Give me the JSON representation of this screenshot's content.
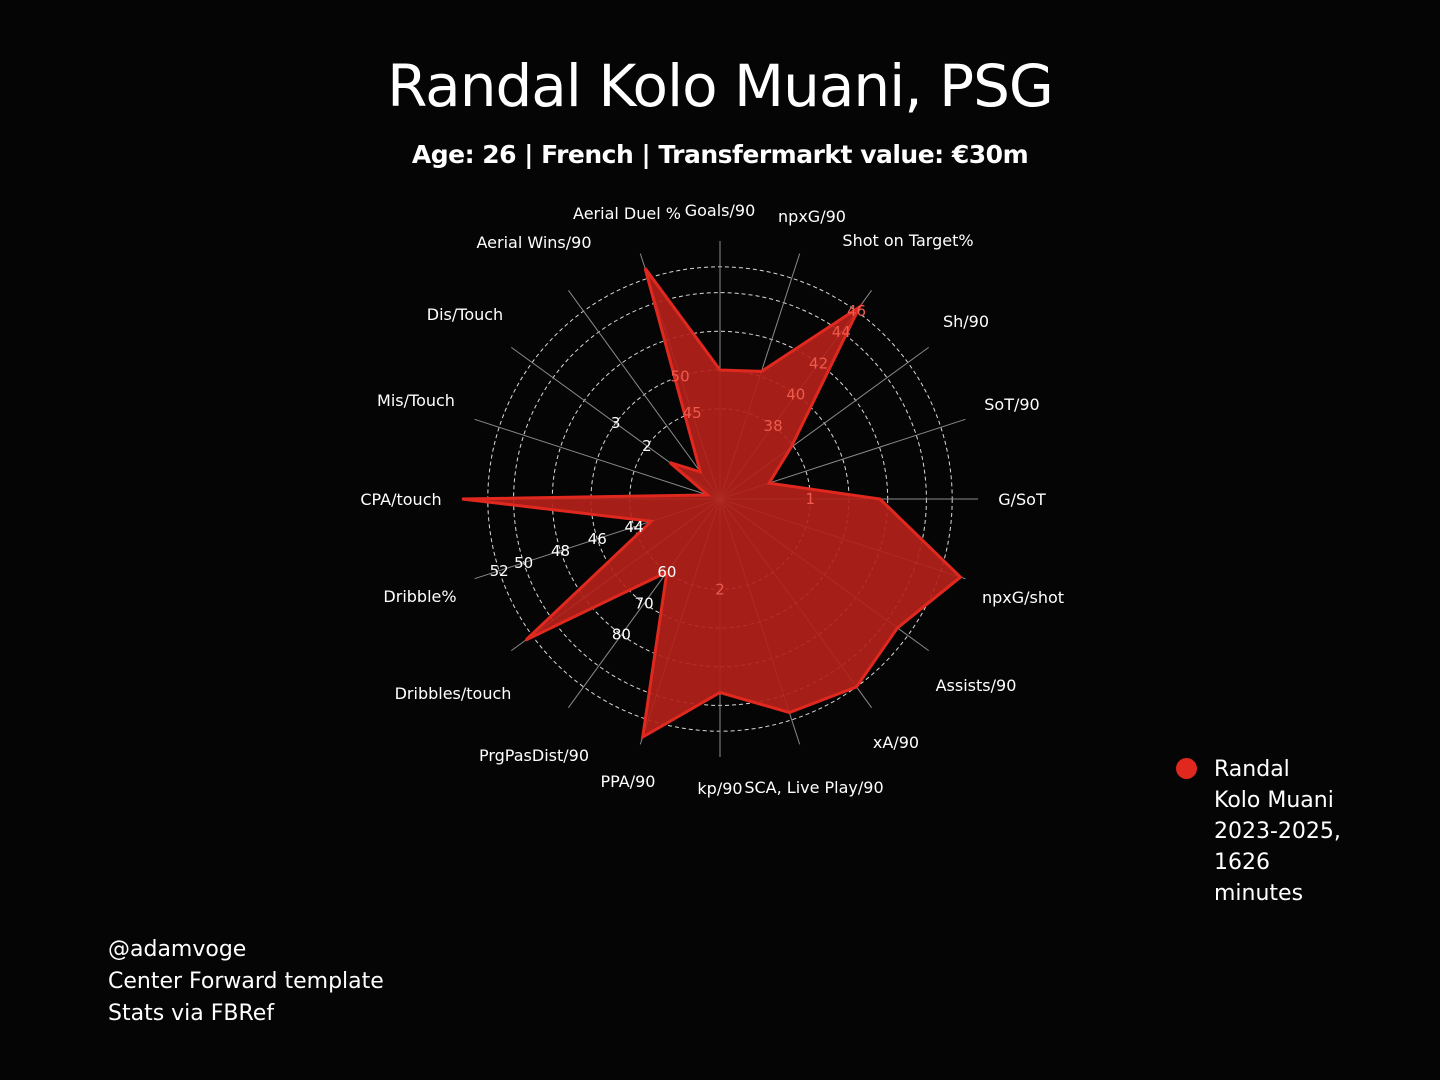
{
  "title": "Randal Kolo Muani, PSG",
  "subtitle": "Age: 26 | French | Transfermarkt value: €30m",
  "colors": {
    "background": "#050505",
    "player_fill": "#b3211a",
    "player_edge": "#e0281f",
    "grid": "#d9d9d9",
    "spoke": "#8a8a8a",
    "text": "#ffffff",
    "tick_label_on_fill": "#ef5b4d"
  },
  "legend": {
    "lines": [
      "Randal",
      "Kolo Muani",
      "2023-2025,",
      "1626",
      "minutes"
    ]
  },
  "footer": {
    "lines": [
      "@adamvoge",
      "Center Forward template",
      "Stats via FBRef"
    ]
  },
  "chart_data": {
    "type": "radar",
    "title": "Randal Kolo Muani, PSG",
    "subtitle": "Age: 26 | French | Transfermarkt value: €30m",
    "grid": true,
    "legend_position": "right",
    "axes": [
      {
        "label": "Goals/90"
      },
      {
        "label": "npxG/90"
      },
      {
        "label": "Shot on Target%",
        "ticks": [
          38,
          40,
          42,
          44,
          46
        ]
      },
      {
        "label": "Sh/90"
      },
      {
        "label": "SoT/90"
      },
      {
        "label": "G/SoT",
        "ticks": [
          1
        ]
      },
      {
        "label": "npxG/shot"
      },
      {
        "label": "Assists/90"
      },
      {
        "label": "xA/90"
      },
      {
        "label": "SCA, Live Play/90"
      },
      {
        "label": "kp/90",
        "ticks": [
          2
        ]
      },
      {
        "label": "PPA/90"
      },
      {
        "label": "PrgPasDist/90",
        "ticks": [
          60,
          70,
          80
        ]
      },
      {
        "label": "Dribbles/touch"
      },
      {
        "label": "Dribble%",
        "ticks": [
          44,
          46,
          48,
          50,
          52
        ]
      },
      {
        "label": "CPA/touch"
      },
      {
        "label": "Mis/Touch"
      },
      {
        "label": "Dis/Touch",
        "ticks": [
          2,
          3
        ]
      },
      {
        "label": "Aerial Wins/90"
      },
      {
        "label": "Aerial Duel %",
        "ticks": [
          45,
          50
        ]
      }
    ],
    "series": [
      {
        "name": "Randal Kolo Muani 2023-2025, 1626 minutes",
        "scaled_values": [
          0.5,
          0.52,
          0.92,
          0.34,
          0.2,
          0.62,
          0.98,
          0.85,
          0.9,
          0.87,
          0.75,
          0.97,
          0.35,
          0.93,
          0.28,
          1.0,
          0.05,
          0.24,
          0.13,
          0.94
        ]
      }
    ]
  }
}
